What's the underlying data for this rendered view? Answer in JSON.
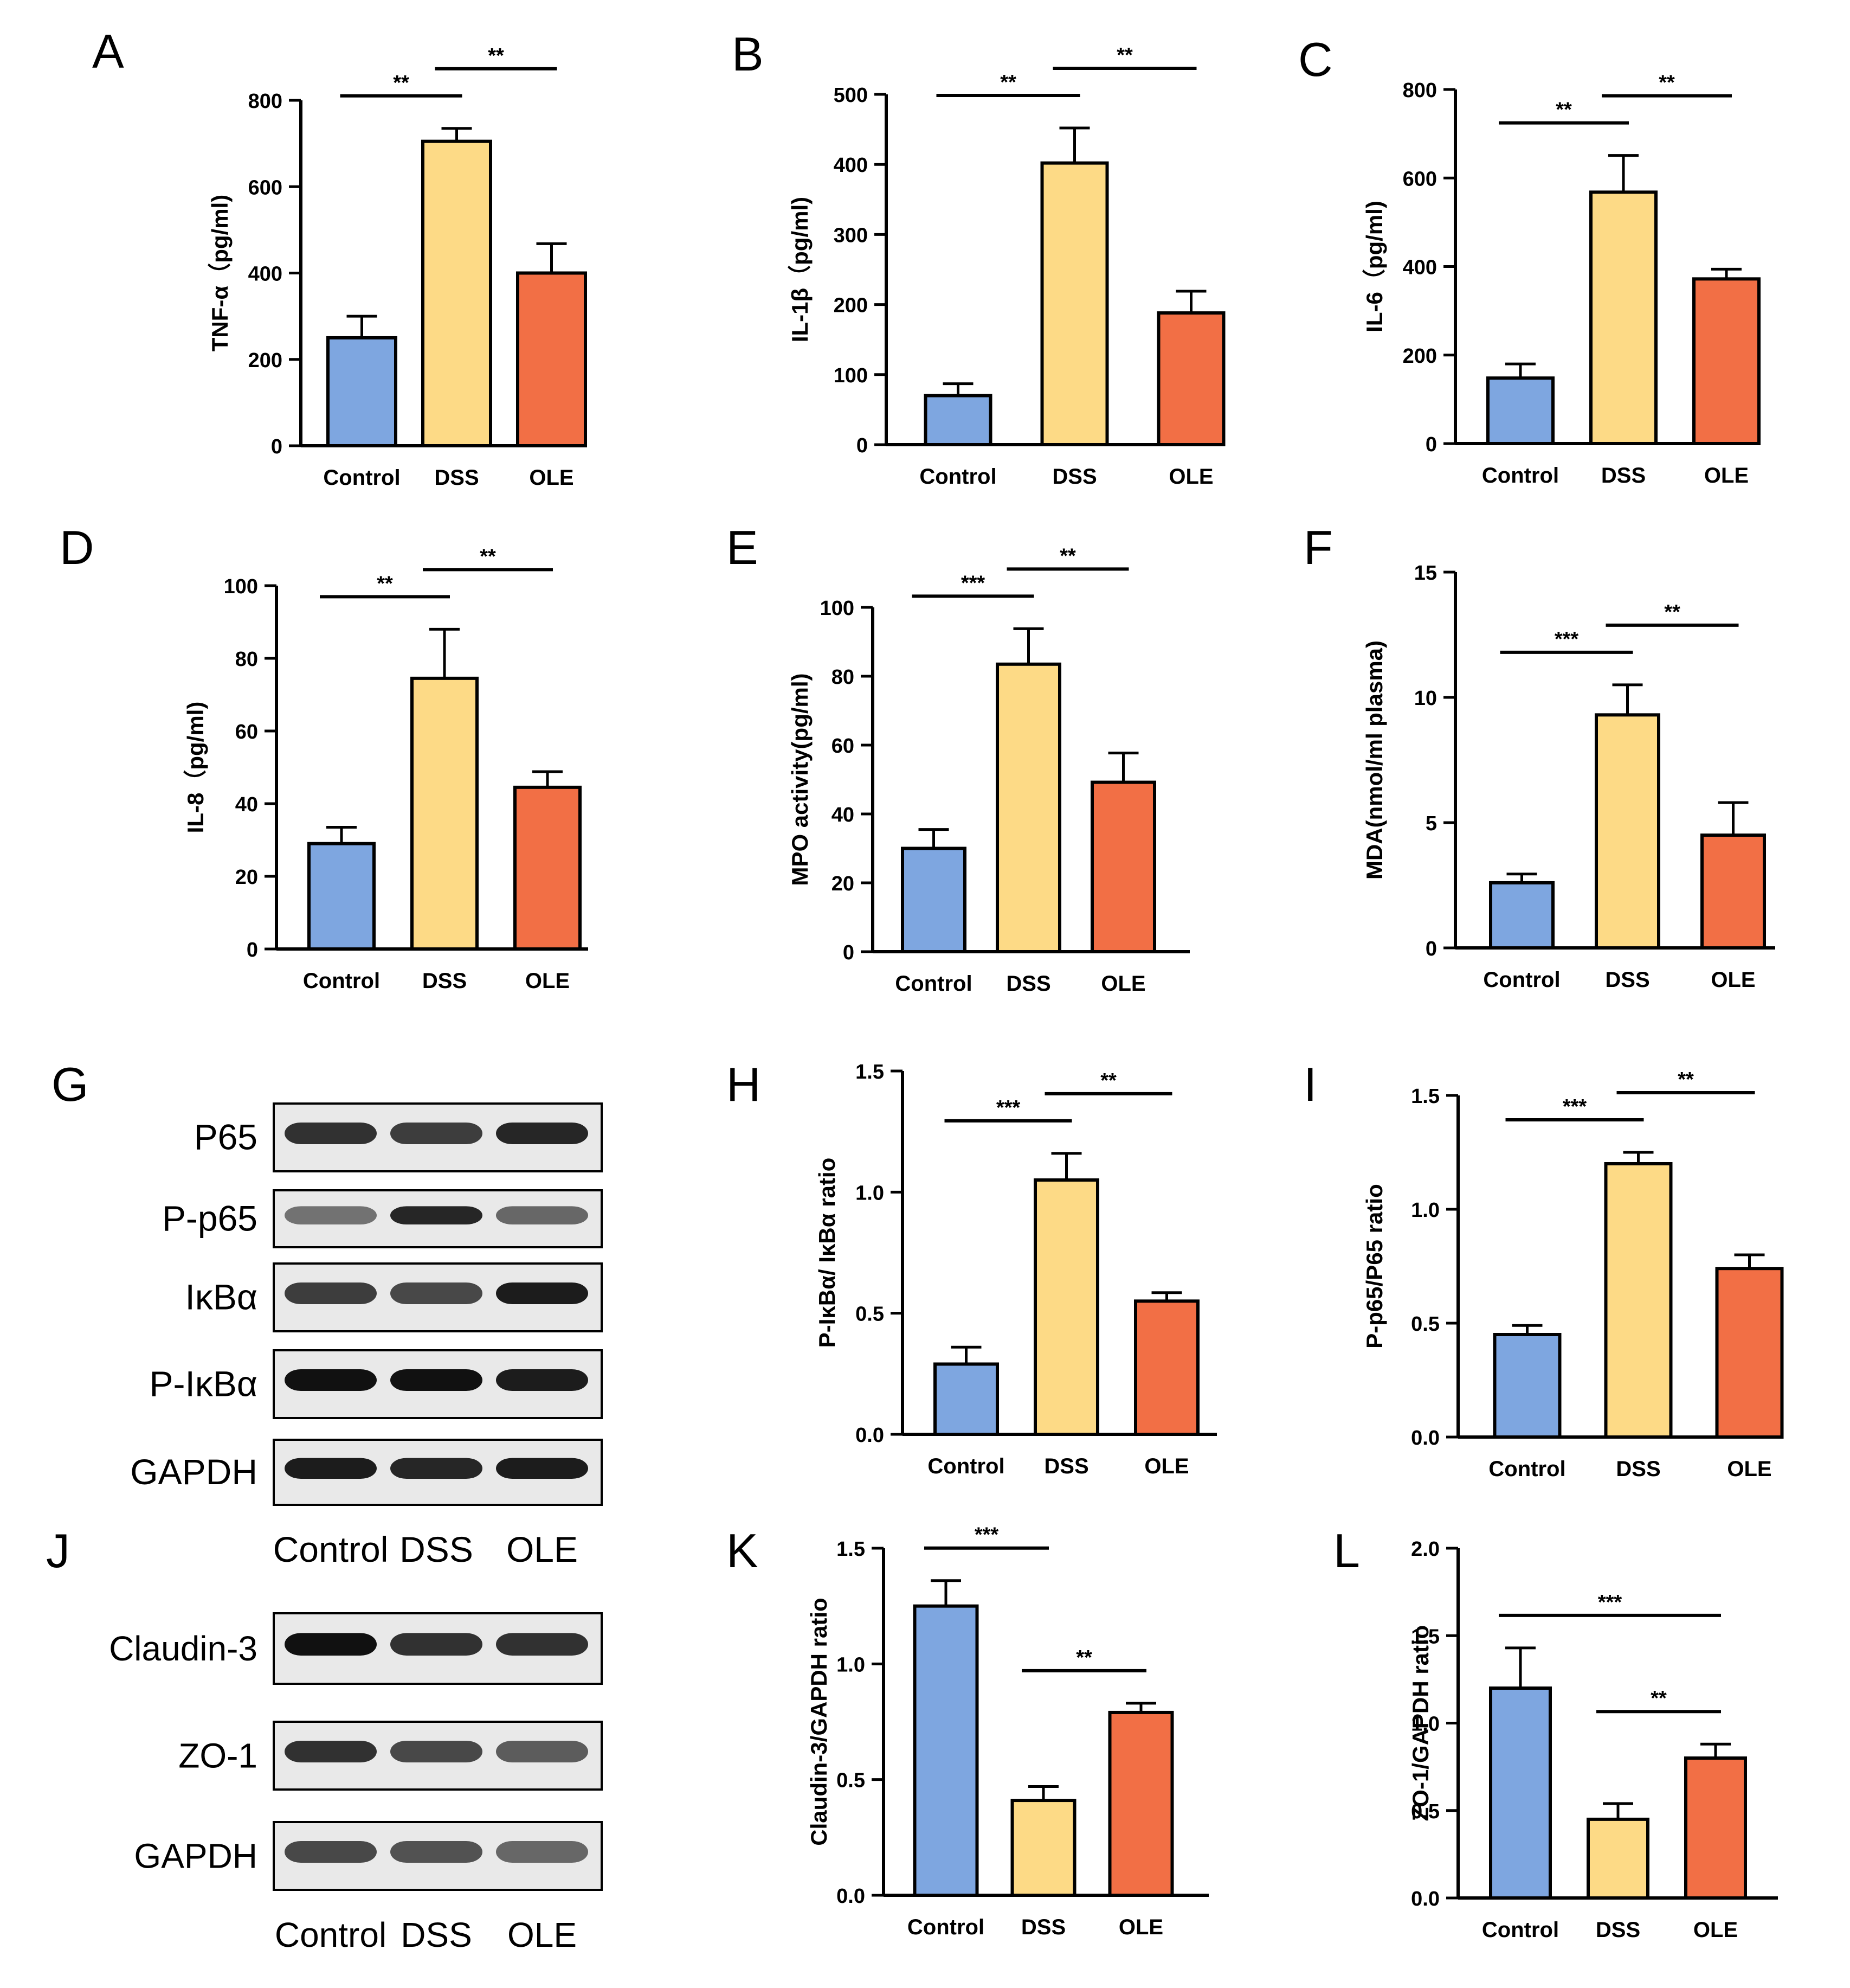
{
  "figure": {
    "panel_letters": [
      "A",
      "B",
      "C",
      "D",
      "E",
      "F",
      "G",
      "H",
      "I",
      "J",
      "K",
      "L"
    ]
  },
  "colors": {
    "control": "#7ea6e0",
    "dss": "#fdda86",
    "ole": "#f26f45",
    "axis": "#000000"
  },
  "chart_data": [
    {
      "panel": "A",
      "type": "bar",
      "ylabel": "TNF-α（pg/ml)",
      "categories": [
        "Control",
        "DSS",
        "OLE"
      ],
      "values": [
        250,
        705,
        400
      ],
      "errors": [
        50,
        30,
        68
      ],
      "ylim": [
        0,
        800
      ],
      "yticks": [
        "0",
        "200",
        "400",
        "600",
        "800"
      ],
      "significance": [
        {
          "from": 0,
          "to": 1,
          "label": "**"
        },
        {
          "from": 1,
          "to": 2,
          "label": "**"
        }
      ]
    },
    {
      "panel": "B",
      "type": "bar",
      "ylabel": "IL-1β（pg/ml)",
      "categories": [
        "Control",
        "DSS",
        "OLE"
      ],
      "values": [
        70,
        402,
        188
      ],
      "errors": [
        17,
        50,
        31
      ],
      "ylim": [
        0,
        500
      ],
      "yticks": [
        "0",
        "100",
        "200",
        "300",
        "400",
        "500"
      ],
      "significance": [
        {
          "from": 0,
          "to": 1,
          "label": "**"
        },
        {
          "from": 1,
          "to": 2,
          "label": "**"
        }
      ]
    },
    {
      "panel": "C",
      "type": "bar",
      "ylabel": "IL-6（pg/ml)",
      "categories": [
        "Control",
        "DSS",
        "OLE"
      ],
      "values": [
        148,
        568,
        372
      ],
      "errors": [
        32,
        83,
        22
      ],
      "ylim": [
        0,
        800
      ],
      "yticks": [
        "0",
        "200",
        "400",
        "600",
        "800"
      ],
      "significance": [
        {
          "from": 0,
          "to": 1,
          "label": "**"
        },
        {
          "from": 1,
          "to": 2,
          "label": "**"
        }
      ]
    },
    {
      "panel": "D",
      "type": "bar",
      "ylabel": "IL-8（pg/ml)",
      "categories": [
        "Control",
        "DSS",
        "OLE"
      ],
      "values": [
        29,
        74.5,
        44.5
      ],
      "errors": [
        4.5,
        13.5,
        4.3
      ],
      "ylim": [
        0,
        100
      ],
      "yticks": [
        "0",
        "20",
        "40",
        "60",
        "80",
        "100"
      ],
      "significance": [
        {
          "from": 0,
          "to": 1,
          "label": "**"
        },
        {
          "from": 1,
          "to": 2,
          "label": "**"
        }
      ]
    },
    {
      "panel": "E",
      "type": "bar",
      "ylabel": "MPO activity(pg/ml)",
      "categories": [
        "Control",
        "DSS",
        "OLE"
      ],
      "values": [
        30,
        83.5,
        49.2
      ],
      "errors": [
        5.5,
        10.3,
        8.5
      ],
      "ylim": [
        0,
        100
      ],
      "yticks": [
        "0",
        "20",
        "40",
        "60",
        "80",
        "100"
      ],
      "significance": [
        {
          "from": 0,
          "to": 1,
          "label": "***"
        },
        {
          "from": 1,
          "to": 2,
          "label": "**"
        }
      ]
    },
    {
      "panel": "F",
      "type": "bar",
      "ylabel": "MDA(nmol/ml plasma)",
      "categories": [
        "Control",
        "DSS",
        "OLE"
      ],
      "values": [
        2.6,
        9.3,
        4.5
      ],
      "errors": [
        0.35,
        1.2,
        1.3
      ],
      "ylim": [
        0,
        15
      ],
      "yticks": [
        "0",
        "5",
        "10",
        "15"
      ],
      "significance": [
        {
          "from": 0,
          "to": 1,
          "label": "***"
        },
        {
          "from": 1,
          "to": 2,
          "label": "**"
        }
      ]
    },
    {
      "panel": "H",
      "type": "bar",
      "ylabel": "P-IκBα/ IκBα ratio",
      "categories": [
        "Control",
        "DSS",
        "OLE"
      ],
      "values": [
        0.29,
        1.05,
        0.55
      ],
      "errors": [
        0.07,
        0.11,
        0.035
      ],
      "ylim": [
        0,
        1.5
      ],
      "yticks": [
        "0.0",
        "0.5",
        "1.0",
        "1.5"
      ],
      "significance": [
        {
          "from": 0,
          "to": 1,
          "label": "***"
        },
        {
          "from": 1,
          "to": 2,
          "label": "**"
        }
      ]
    },
    {
      "panel": "I",
      "type": "bar",
      "ylabel": "P-p65/P65 ratio",
      "categories": [
        "Control",
        "DSS",
        "OLE"
      ],
      "values": [
        0.45,
        1.2,
        0.74
      ],
      "errors": [
        0.04,
        0.05,
        0.06
      ],
      "ylim": [
        0,
        1.5
      ],
      "yticks": [
        "0.0",
        "0.5",
        "1.0",
        "1.5"
      ],
      "significance": [
        {
          "from": 0,
          "to": 1,
          "label": "***"
        },
        {
          "from": 1,
          "to": 2,
          "label": "**"
        }
      ]
    },
    {
      "panel": "K",
      "type": "bar",
      "ylabel": "Claudin-3/GAPDH ratio",
      "categories": [
        "Control",
        "DSS",
        "OLE"
      ],
      "values": [
        1.25,
        0.41,
        0.79
      ],
      "errors": [
        0.11,
        0.06,
        0.04
      ],
      "ylim": [
        0,
        1.5
      ],
      "yticks": [
        "0.0",
        "0.5",
        "1.0",
        "1.5"
      ],
      "significance": [
        {
          "from": 0,
          "to": 1,
          "label": "***"
        },
        {
          "from": 1,
          "to": 2,
          "label": "**"
        }
      ]
    },
    {
      "panel": "L",
      "type": "bar",
      "ylabel": "ZO-1/GAPDH ratio",
      "categories": [
        "Control",
        "DSS",
        "OLE"
      ],
      "values": [
        1.2,
        0.45,
        0.8
      ],
      "errors": [
        0.23,
        0.09,
        0.08
      ],
      "ylim": [
        0,
        2.0
      ],
      "yticks": [
        "0.0",
        "0.5",
        "1.0",
        "1.5",
        "2.0"
      ],
      "significance": [
        {
          "from": 0,
          "to": 2,
          "label": "***"
        },
        {
          "from": 1,
          "to": 2,
          "label": "**"
        }
      ]
    }
  ],
  "blots": [
    {
      "panel": "G",
      "lane_labels": [
        "Control",
        "DSS",
        "OLE"
      ],
      "rows": [
        {
          "label": "P65",
          "intensity": [
            0.85,
            0.8,
            0.9
          ]
        },
        {
          "label": "P-p65",
          "intensity": [
            0.55,
            0.9,
            0.6
          ]
        },
        {
          "label": "IκBα",
          "intensity": [
            0.8,
            0.75,
            0.95
          ]
        },
        {
          "label": "P-IκBα",
          "intensity": [
            1.0,
            1.0,
            0.95
          ]
        },
        {
          "label": "GAPDH",
          "intensity": [
            0.95,
            0.9,
            0.95
          ]
        }
      ]
    },
    {
      "panel": "J",
      "lane_labels": [
        "Control",
        "DSS",
        "OLE"
      ],
      "rows": [
        {
          "label": "Claudin-3",
          "intensity": [
            1.0,
            0.85,
            0.85
          ]
        },
        {
          "label": "ZO-1",
          "intensity": [
            0.85,
            0.75,
            0.65
          ]
        },
        {
          "label": "GAPDH",
          "intensity": [
            0.75,
            0.7,
            0.6
          ]
        }
      ]
    }
  ]
}
